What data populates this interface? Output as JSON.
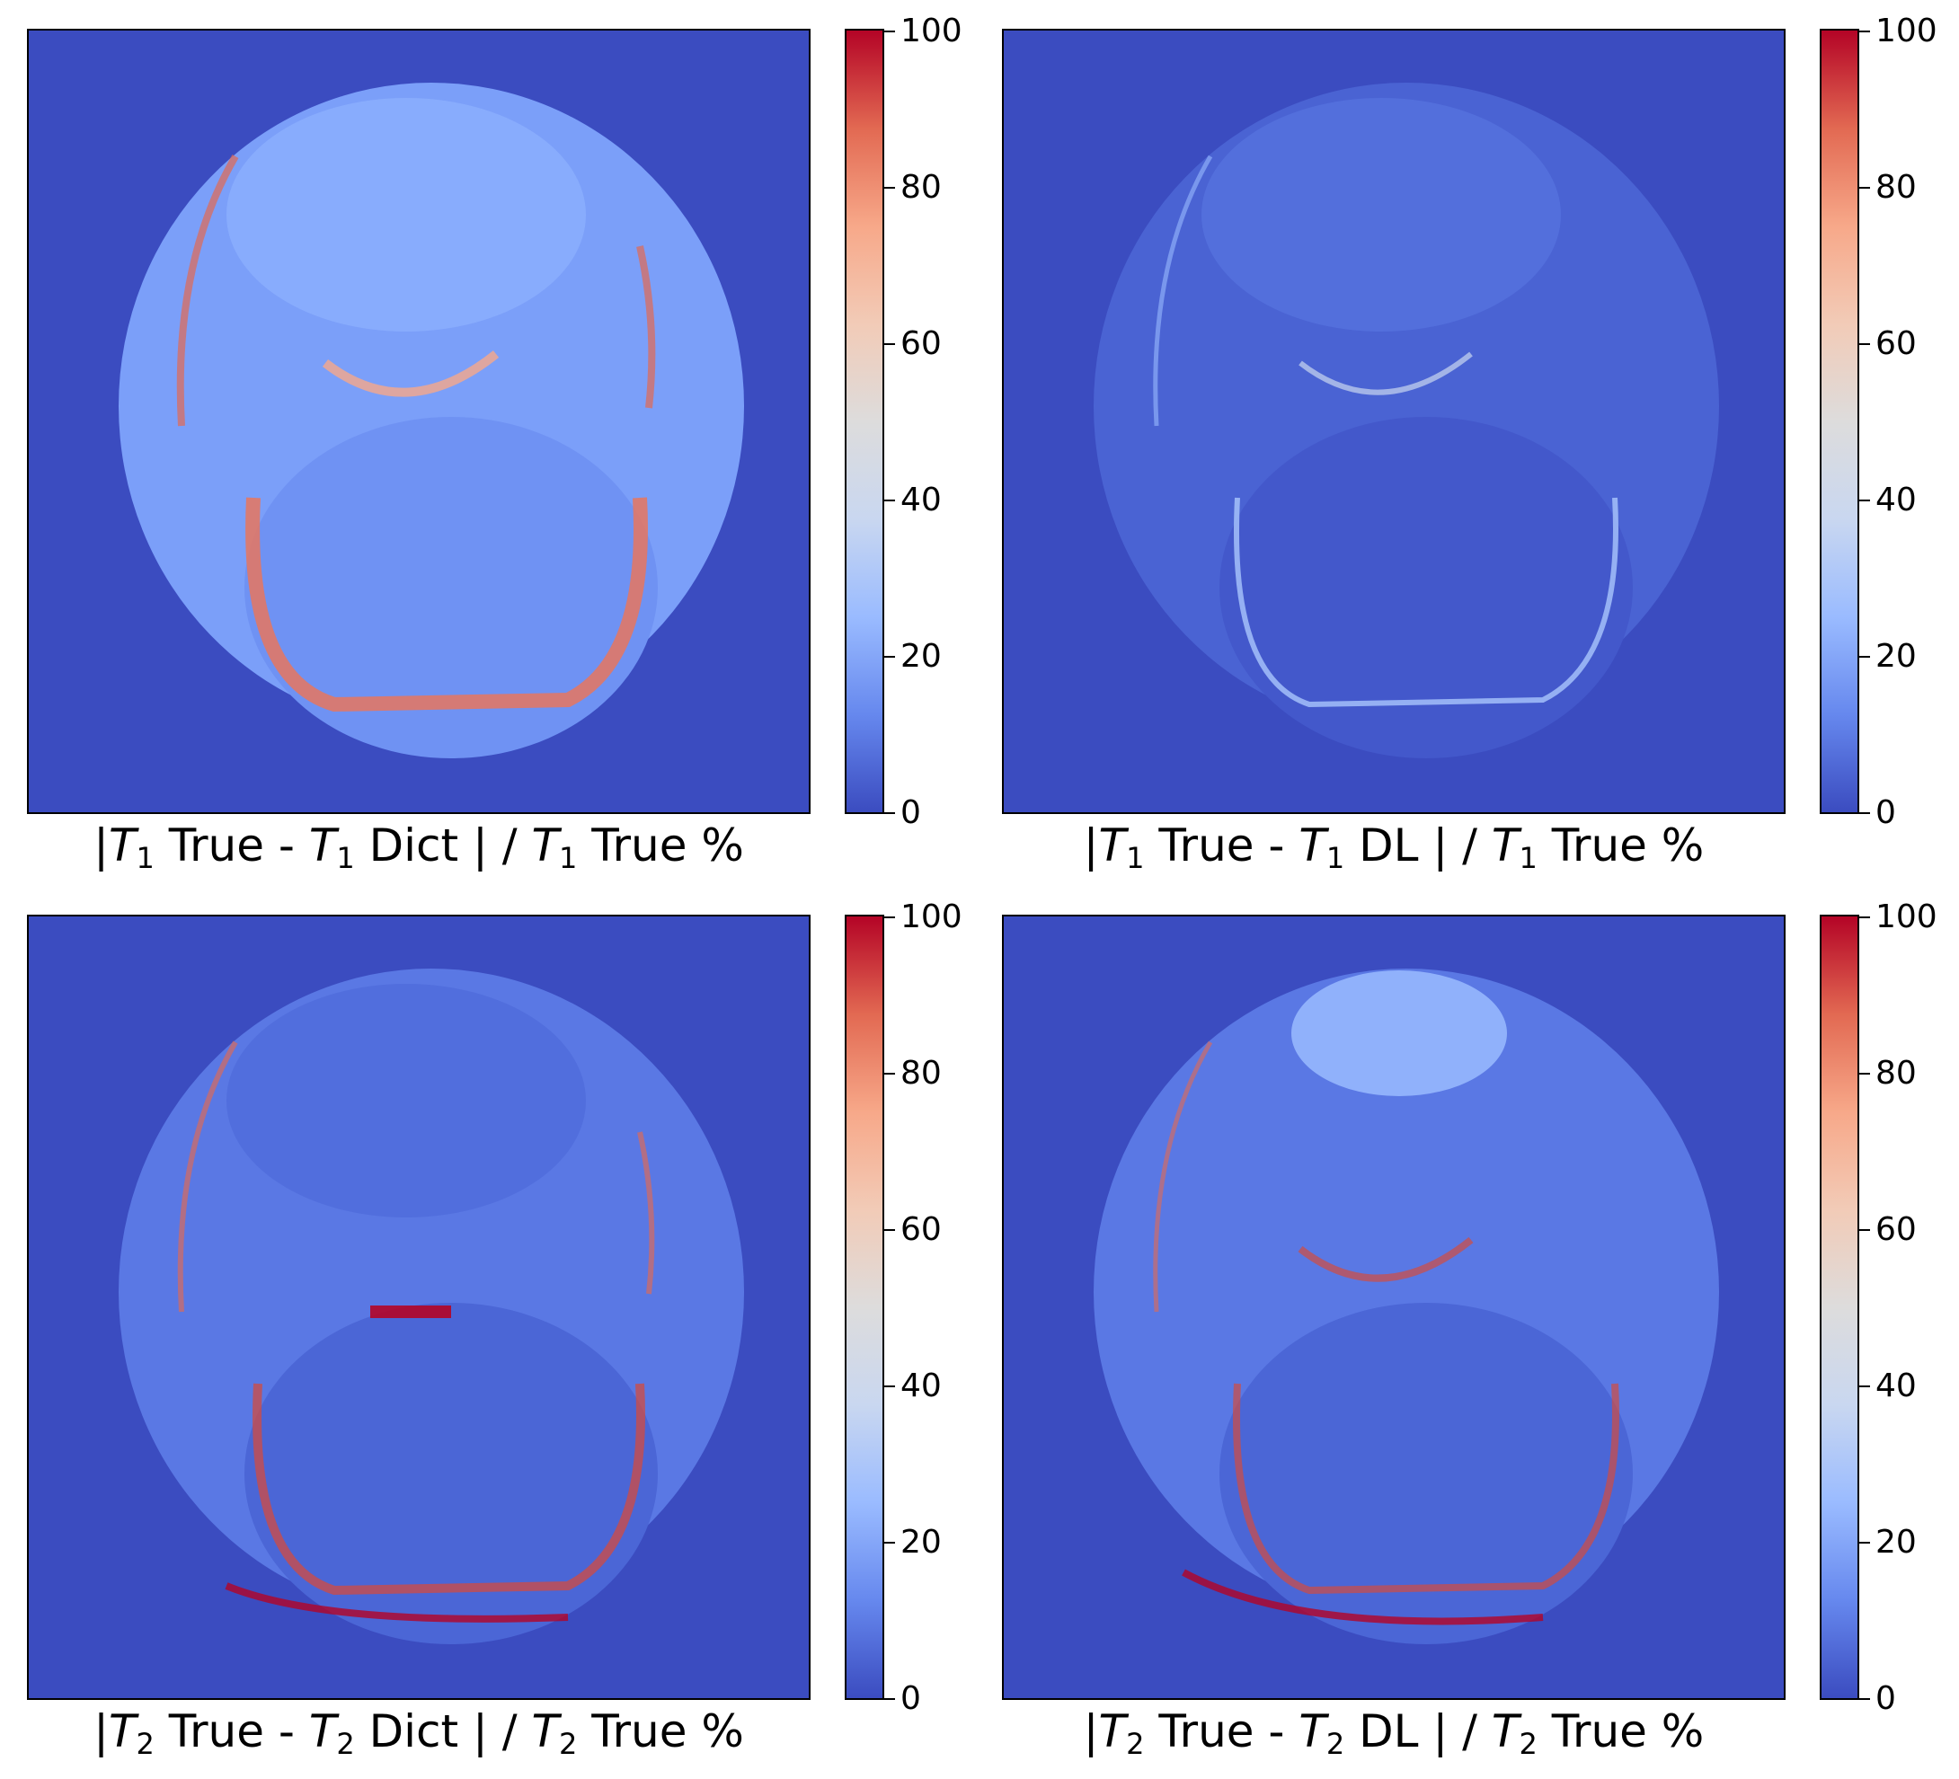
{
  "chart_data": [
    {
      "type": "heatmap",
      "colormap": "coolwarm",
      "zlim": [
        0,
        100
      ],
      "colorbar_ticks": [
        "0",
        "20",
        "40",
        "60",
        "80",
        "100"
      ],
      "caption": {
        "open": "|",
        "sym1": "T",
        "sub1": "1",
        "mid1": " True - ",
        "sym2": "T",
        "sub2": "1",
        "mid2": " Dict | / ",
        "sym3": "T",
        "sub3": "1",
        "end": " True %"
      }
    },
    {
      "type": "heatmap",
      "colormap": "coolwarm",
      "zlim": [
        0,
        100
      ],
      "colorbar_ticks": [
        "0",
        "20",
        "40",
        "60",
        "80",
        "100"
      ],
      "caption": {
        "open": "|",
        "sym1": "T",
        "sub1": "1",
        "mid1": " True - ",
        "sym2": "T",
        "sub2": "1",
        "mid2": " DL | / ",
        "sym3": "T",
        "sub3": "1",
        "end": " True %"
      }
    },
    {
      "type": "heatmap",
      "colormap": "coolwarm",
      "zlim": [
        0,
        100
      ],
      "colorbar_ticks": [
        "0",
        "20",
        "40",
        "60",
        "80",
        "100"
      ],
      "caption": {
        "open": "|",
        "sym1": "T",
        "sub1": "2",
        "mid1": " True - ",
        "sym2": "T",
        "sub2": "2",
        "mid2": " Dict | / ",
        "sym3": "T",
        "sub3": "2",
        "end": " True %"
      }
    },
    {
      "type": "heatmap",
      "colormap": "coolwarm",
      "zlim": [
        0,
        100
      ],
      "colorbar_ticks": [
        "0",
        "20",
        "40",
        "60",
        "80",
        "100"
      ],
      "caption": {
        "open": "|",
        "sym1": "T",
        "sub1": "2",
        "mid1": " True - ",
        "sym2": "T",
        "sub2": "2",
        "mid2": " DL | / ",
        "sym3": "T",
        "sub3": "2",
        "end": " True %"
      }
    }
  ],
  "colors": {
    "background_blue": "#3b4cc0",
    "low": "#3b4cc0",
    "mid": "#dddcdc",
    "high": "#b40426"
  }
}
